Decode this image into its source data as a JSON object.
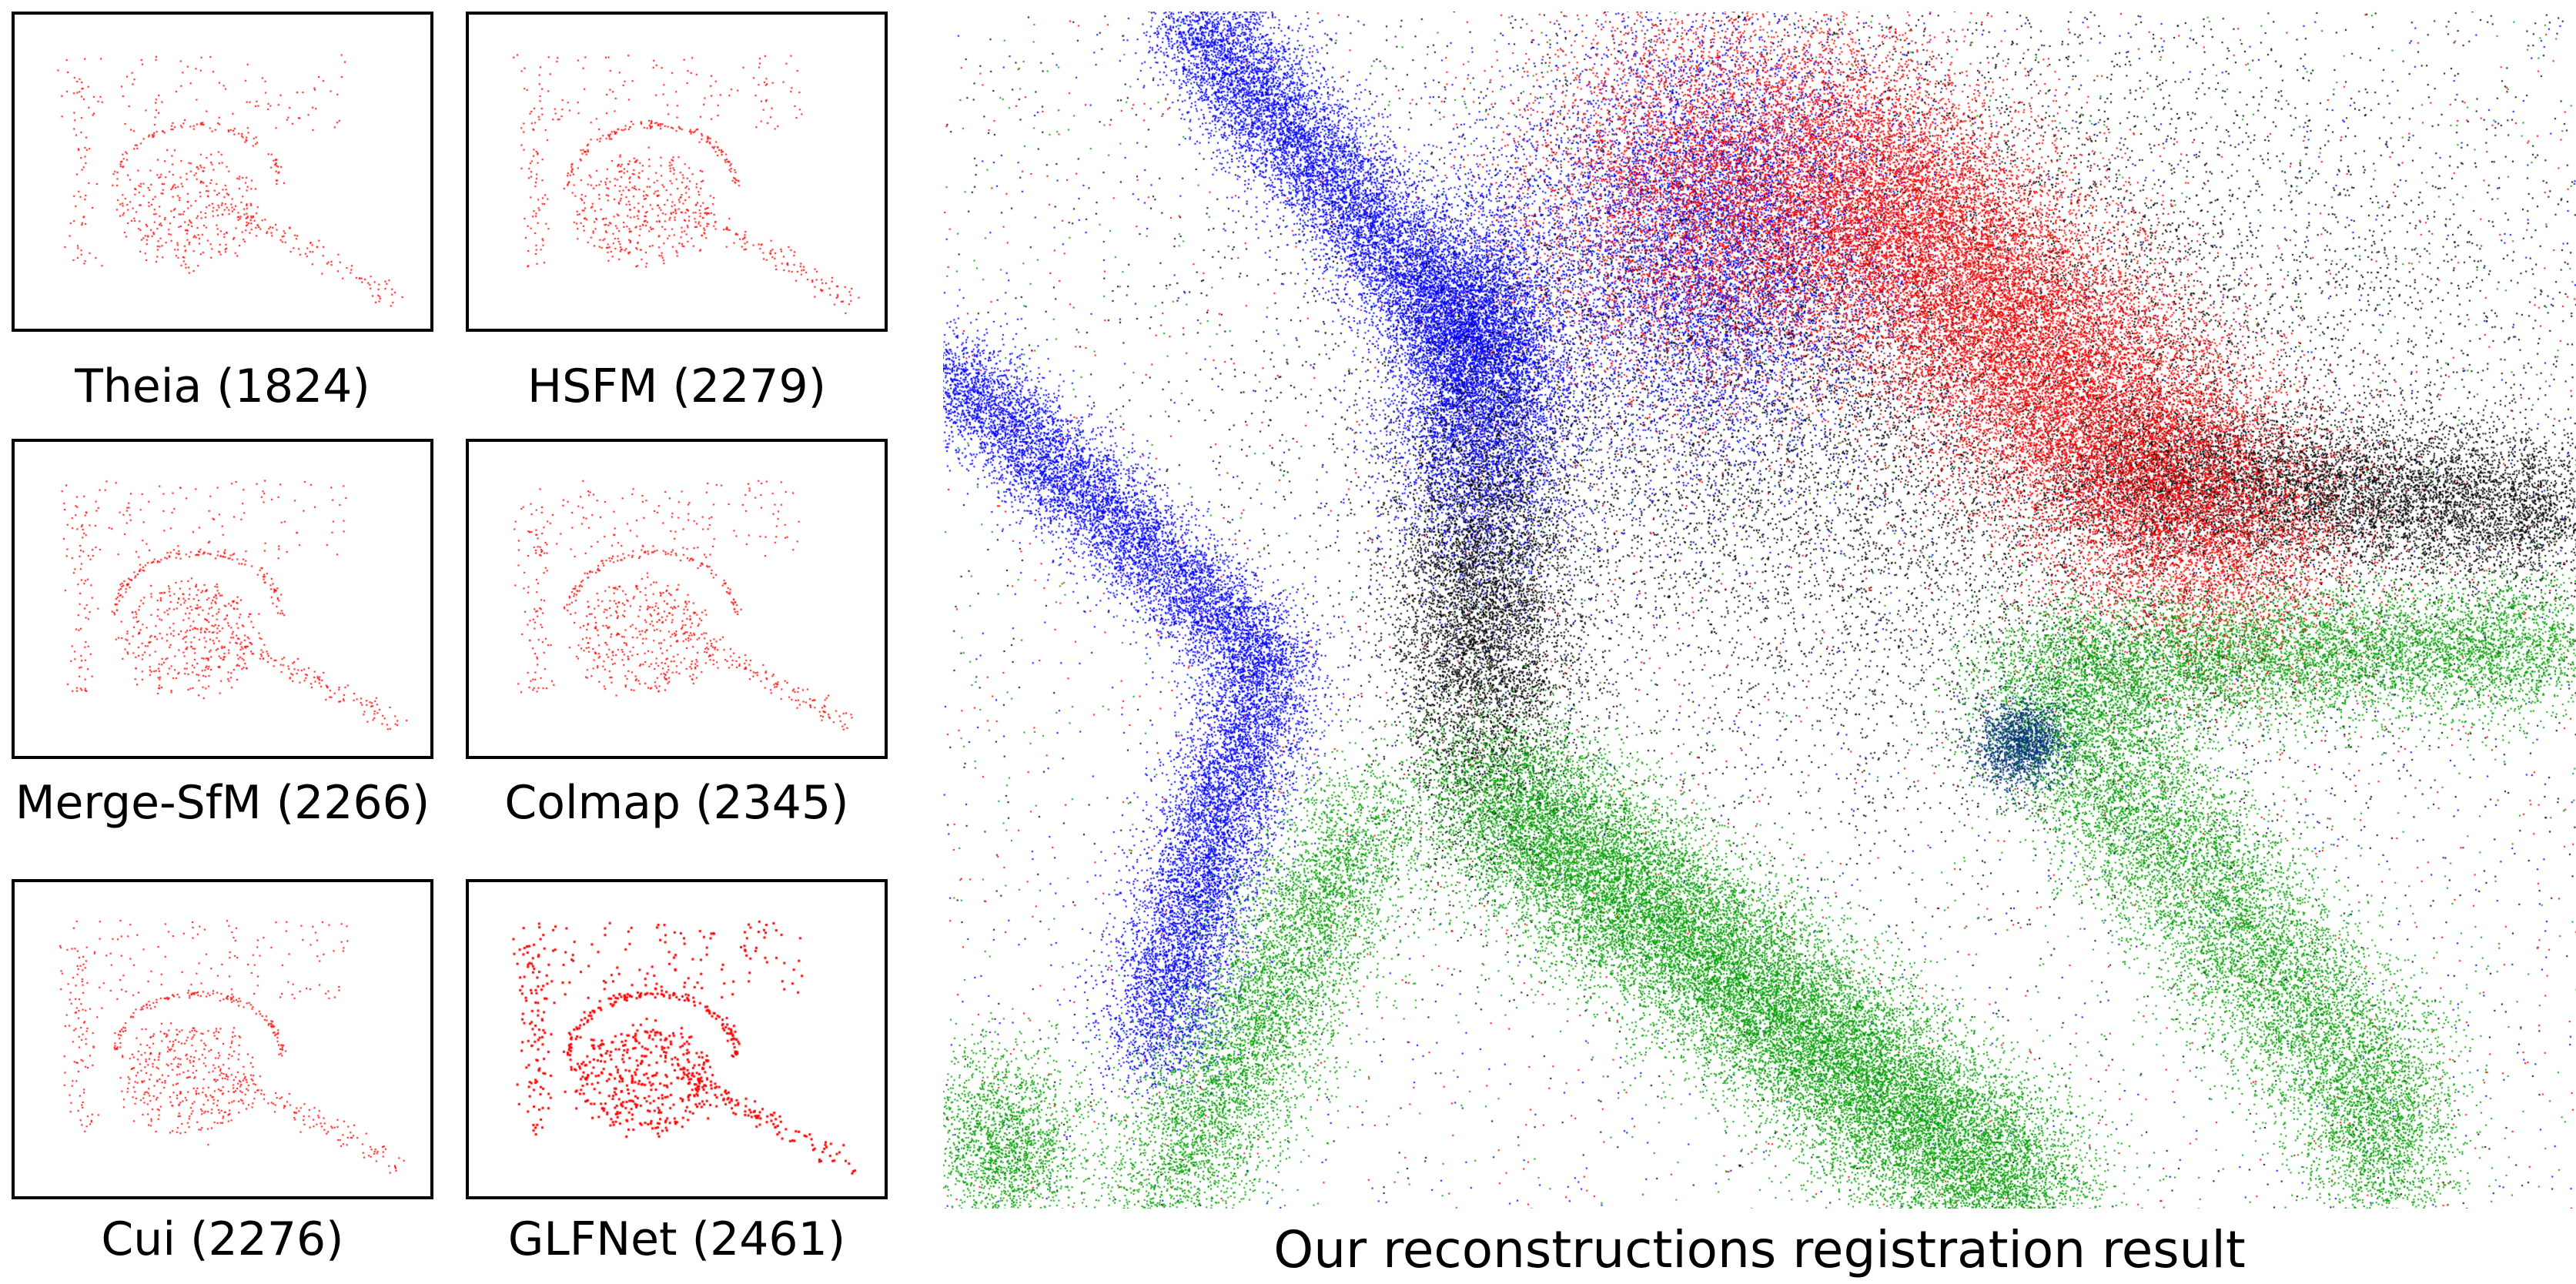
{
  "panels": [
    {
      "label": "Theia (1824)",
      "point_count": 1824
    },
    {
      "label": "HSFM (2279)",
      "point_count": 2279
    },
    {
      "label": "Merge-SfM (2266)",
      "point_count": 2266
    },
    {
      "label": "Colmap (2345)",
      "point_count": 2345
    },
    {
      "label": "Cui (2276)",
      "point_count": 2276
    },
    {
      "label": "GLFNet (2461)",
      "point_count": 2461
    }
  ],
  "main": {
    "caption": "Our reconstructions registration result",
    "point_colors": {
      "red": "#ff0000",
      "blue": "#0000ff",
      "green": "#00a000",
      "black": "#000000"
    }
  },
  "colors": {
    "panel_points": "#ff0000",
    "border": "#000000"
  }
}
